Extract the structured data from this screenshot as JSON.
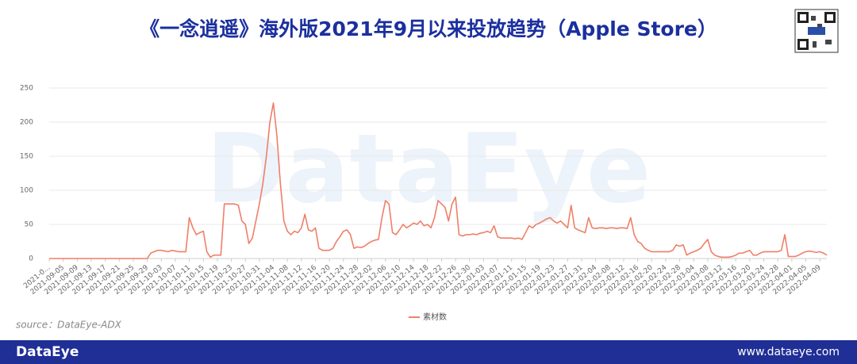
{
  "chart_data": {
    "type": "line",
    "title": "《一念逍遥》海外版2021年9月以来投放趋势（Apple Store）",
    "categories": [
      "2021-0...",
      null,
      null,
      null,
      "2021-09-05",
      null,
      null,
      null,
      "2021-09-09",
      null,
      null,
      null,
      "2021-09-13",
      null,
      null,
      null,
      "2021-09-17",
      null,
      null,
      null,
      "2021-09-21",
      null,
      null,
      null,
      "2021-09-25",
      null,
      null,
      null,
      "2021-09-29",
      null,
      null,
      null,
      "2021-10-03",
      null,
      null,
      null,
      "2021-10-07",
      null,
      null,
      null,
      "2021-10-11",
      null,
      null,
      null,
      "2021-10-15",
      null,
      null,
      null,
      "2021-10-19",
      null,
      null,
      null,
      "2021-10-23",
      null,
      null,
      null,
      "2021-10-27",
      null,
      null,
      null,
      "2021-10-31",
      null,
      null,
      null,
      "2021-11-04",
      null,
      null,
      null,
      "2021-11-08",
      null,
      null,
      null,
      "2021-11-12",
      null,
      null,
      null,
      "2021-11-16",
      null,
      null,
      null,
      "2021-11-20",
      null,
      null,
      null,
      "2021-11-24",
      null,
      null,
      null,
      "2021-11-28",
      null,
      null,
      null,
      "2021-12-02",
      null,
      null,
      null,
      "2021-12-06",
      null,
      null,
      null,
      "2021-12-10",
      null,
      null,
      null,
      "2021-12-14",
      null,
      null,
      null,
      "2021-12-18",
      null,
      null,
      null,
      "2021-12-22",
      null,
      null,
      null,
      "2021-12-26",
      null,
      null,
      null,
      "2021-12-30",
      null,
      null,
      null,
      "2022-01-03",
      null,
      null,
      null,
      "2022-01-07",
      null,
      null,
      null,
      "2022-01-11",
      null,
      null,
      null,
      "2022-01-15",
      null,
      null,
      null,
      "2022-01-19",
      null,
      null,
      null,
      "2022-01-23",
      null,
      null,
      null,
      "2022-01-27",
      null,
      null,
      null,
      "2022-01-31",
      null,
      null,
      null,
      "2022-02-04",
      null,
      null,
      null,
      "2022-02-08",
      null,
      null,
      null,
      "2022-02-12",
      null,
      null,
      null,
      "2022-02-16",
      null,
      null,
      null,
      "2022-02-20",
      null,
      null,
      null,
      "2022-02-24",
      null,
      null,
      null,
      "2022-02-28",
      null,
      null,
      null,
      "2022-03-04",
      null,
      null,
      null,
      "2022-03-08",
      null,
      null,
      null,
      "2022-03-12",
      null,
      null,
      null,
      "2022-03-16",
      null,
      null,
      null,
      "2022-03-20",
      null,
      null,
      null,
      "2022-03-24",
      null,
      null,
      null,
      "2022-03-28",
      null,
      null,
      null,
      "2022-04-01",
      null,
      null,
      null,
      "2022-04-05",
      null,
      null,
      null,
      "2022-04-09",
      null,
      null
    ],
    "series": [
      {
        "name": "素材数",
        "color": "#ef7f68",
        "values": [
          0,
          0,
          0,
          0,
          0,
          0,
          0,
          0,
          0,
          0,
          0,
          0,
          0,
          0,
          0,
          0,
          0,
          0,
          0,
          0,
          0,
          0,
          0,
          0,
          0,
          0,
          0,
          0,
          0,
          8,
          10,
          12,
          12,
          11,
          10,
          12,
          11,
          10,
          10,
          10,
          60,
          45,
          35,
          38,
          40,
          10,
          2,
          5,
          5,
          5,
          80,
          80,
          80,
          80,
          78,
          55,
          50,
          22,
          30,
          55,
          80,
          110,
          150,
          200,
          228,
          180,
          110,
          55,
          40,
          35,
          40,
          38,
          45,
          65,
          42,
          40,
          45,
          15,
          12,
          12,
          12,
          15,
          25,
          32,
          40,
          42,
          35,
          15,
          17,
          16,
          18,
          22,
          25,
          27,
          28,
          60,
          85,
          80,
          38,
          35,
          42,
          50,
          45,
          48,
          52,
          50,
          55,
          48,
          50,
          45,
          60,
          85,
          80,
          75,
          55,
          80,
          90,
          35,
          33,
          35,
          35,
          36,
          35,
          37,
          38,
          40,
          38,
          48,
          32,
          30,
          30,
          30,
          30,
          29,
          30,
          28,
          38,
          48,
          45,
          50,
          52,
          55,
          58,
          60,
          55,
          52,
          55,
          50,
          45,
          78,
          45,
          42,
          40,
          38,
          60,
          45,
          44,
          45,
          45,
          44,
          45,
          45,
          44,
          45,
          45,
          44,
          60,
          35,
          25,
          22,
          15,
          12,
          10,
          10,
          10,
          10,
          10,
          10,
          12,
          20,
          18,
          20,
          5,
          8,
          10,
          12,
          15,
          22,
          28,
          10,
          5,
          3,
          2,
          2,
          2,
          3,
          5,
          8,
          8,
          10,
          12,
          5,
          5,
          8,
          10,
          10,
          10,
          10,
          10,
          12,
          35,
          3,
          3,
          3,
          5,
          8,
          10,
          11,
          10,
          9,
          10,
          8,
          5
        ]
      }
    ],
    "ylim": [
      0,
      250
    ],
    "yticks": [
      0,
      50,
      100,
      150,
      200,
      250
    ],
    "grid": true,
    "legend": "bottom"
  },
  "watermark": "DataEye",
  "source": "source：DataEye-ADX",
  "footer": {
    "brand": "DataEye",
    "url": "www.dataeye.com"
  }
}
